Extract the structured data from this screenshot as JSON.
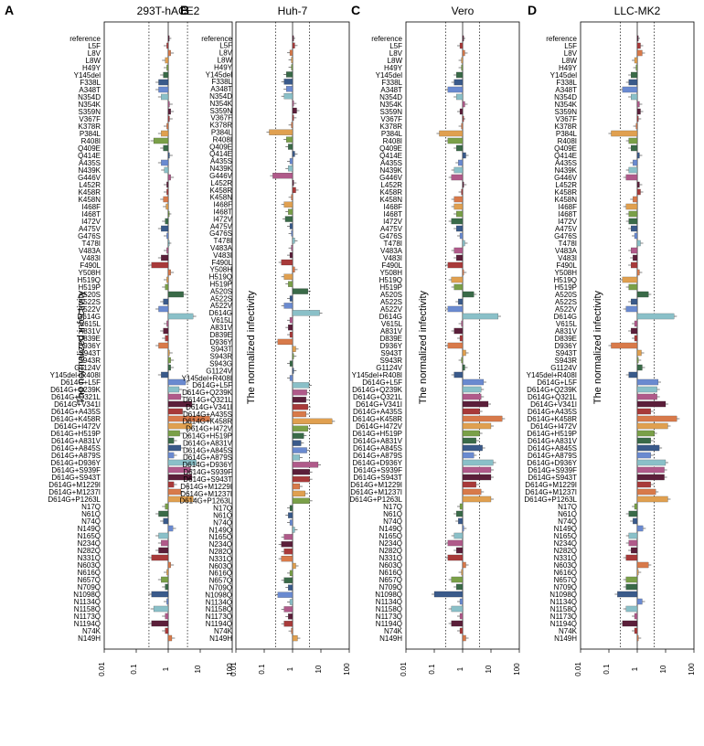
{
  "figure": {
    "y_label": "The normalized infectivity"
  },
  "chart_data": [
    {
      "panel": "A",
      "title": "293T-hACE2",
      "type": "bar",
      "orientation": "horizontal",
      "xscale": "log",
      "xlim": [
        0.01,
        100
      ],
      "xticks": [
        "0.01",
        "0.1",
        "1",
        "10",
        "100"
      ],
      "reference_lines": [
        0.25,
        4
      ],
      "ylabel": "The normalized infectivity",
      "categories": [
        "reference",
        "L5F",
        "L8V",
        "L8W",
        "H49Y",
        "Y145del",
        "F338L",
        "A348T",
        "N354D",
        "N354K",
        "S359N",
        "V367F",
        "K378R",
        "P384L",
        "R408I",
        "Q409E",
        "Q414E",
        "A435S",
        "N439K",
        "G446V",
        "L452R",
        "K458R",
        "K458N",
        "I468F",
        "I468T",
        "I472V",
        "A475V",
        "G476S",
        "T478I",
        "V483A",
        "V483I",
        "F490L",
        "Y508H",
        "H519Q",
        "H519P",
        "A520S",
        "A522S",
        "A522V",
        "D614G",
        "V615L",
        "A831V",
        "D839E",
        "D936Y",
        "S943T",
        "S943R",
        "G1124V",
        "Y145del+R408I",
        "D614G+L5F",
        "D614G+Q239K",
        "D614G+Q321L",
        "D614G+V341I",
        "D614G+A435S",
        "D614G+K458R",
        "D614G+I472V",
        "D614G+H519P",
        "D614G+A831V",
        "D614G+A845S",
        "D614G+A879S",
        "D614G+D936Y",
        "D614G+S939F",
        "D614G+S943T",
        "D614G+M1229I",
        "D614G+M1237I",
        "D614G+P1263L",
        "N17Q",
        "N61Q",
        "N74Q",
        "N149Q",
        "N165Q",
        "N234Q",
        "N282Q",
        "N331Q",
        "N603Q",
        "N616Q",
        "N657Q",
        "N709Q",
        "N1098Q",
        "N1134Q",
        "N1158Q",
        "N1173Q",
        "N1194Q",
        "N74K",
        "N149H"
      ],
      "values": [
        1,
        0.9,
        1.2,
        0.8,
        0.9,
        0.7,
        0.5,
        0.5,
        0.6,
        1.1,
        1.2,
        1.1,
        0.9,
        0.6,
        0.35,
        0.7,
        1.1,
        0.6,
        0.75,
        1.2,
        0.9,
        0.9,
        0.7,
        0.85,
        1.0,
        0.8,
        0.6,
        0.9,
        1.0,
        0.9,
        0.6,
        0.3,
        1.2,
        0.9,
        0.8,
        3.0,
        0.7,
        0.5,
        6.0,
        0.9,
        0.7,
        0.8,
        0.5,
        1.1,
        1.2,
        1.2,
        0.6,
        3.5,
        2.2,
        2.5,
        5.5,
        2.8,
        20,
        5.5,
        2.3,
        1.5,
        2.5,
        1.5,
        7.5,
        5.0,
        5.5,
        1.5,
        2.5,
        6.0,
        0.8,
        0.5,
        0.7,
        1.4,
        0.5,
        0.6,
        0.5,
        0.3,
        1.2,
        0.9,
        0.6,
        0.8,
        0.3,
        0.9,
        0.35,
        0.8,
        0.3,
        0.8,
        1.3
      ]
    },
    {
      "panel": "B",
      "title": "Huh-7",
      "type": "bar",
      "orientation": "horizontal",
      "xscale": "log",
      "xlim": [
        0.01,
        100
      ],
      "xticks": [
        "0.01",
        "0.1",
        "1",
        "10",
        "100"
      ],
      "reference_lines": [
        0.25,
        4
      ],
      "ylabel": "The normalized infectivity",
      "categories": [
        "reference",
        "L5F",
        "L8V",
        "L8W",
        "H49Y",
        "Y145del",
        "F338L",
        "A348T",
        "N354D",
        "N354K",
        "S359N",
        "V367F",
        "K378R",
        "P384L",
        "R408I",
        "Q409E",
        "Q414E",
        "A435S",
        "N439K",
        "G446V",
        "L452R",
        "K458R",
        "K458N",
        "I468F",
        "I468T",
        "I472V",
        "A475V",
        "G476S",
        "T478I",
        "V483A",
        "V483I",
        "F490L",
        "Y508H",
        "H519Q",
        "H519P",
        "A520S",
        "A522S",
        "A522V",
        "D614G",
        "V615L",
        "A831V",
        "D839E",
        "D936Y",
        "S943T",
        "S943R",
        "S943G",
        "G1124V",
        "Y145del+R408I",
        "D614G+L5F",
        "D614G+Q239K",
        "D614G+Q321L",
        "D614G+V341I",
        "D614G+A435S",
        "D614G+K458R",
        "D614G+I472V",
        "D614G+H519P",
        "D614G+A831V",
        "D614G+A845S",
        "D614G+A879S",
        "D614G+D936Y",
        "D614G+S939F",
        "D614G+S943T",
        "D614G+M1229I",
        "D614G+M1237I",
        "D614G+P1263L",
        "N17Q",
        "N61Q",
        "N74Q",
        "N149Q",
        "N165Q",
        "N234Q",
        "N282Q",
        "N331Q",
        "N603Q",
        "N616Q",
        "N657Q",
        "N709Q",
        "N1098Q",
        "N1134Q",
        "N1158Q",
        "N1173Q",
        "N1194Q",
        "N74K",
        "N149H"
      ],
      "values": [
        1,
        1.2,
        0.8,
        0.9,
        0.9,
        0.6,
        0.5,
        0.6,
        0.5,
        1.1,
        1.4,
        1.1,
        0.9,
        0.15,
        0.6,
        0.7,
        1.2,
        0.8,
        0.7,
        0.2,
        1.1,
        1.3,
        0.9,
        0.5,
        0.7,
        0.55,
        0.8,
        0.9,
        1.2,
        0.9,
        0.8,
        0.4,
        1.2,
        0.5,
        0.7,
        3.5,
        0.8,
        0.5,
        9.0,
        0.8,
        0.7,
        0.8,
        0.3,
        1.3,
        1.1,
        0.8,
        1.1,
        0.8,
        3.8,
        3.2,
        3.0,
        3.5,
        3.0,
        25,
        3.5,
        2.5,
        2.0,
        3.2,
        1.8,
        8.0,
        4.0,
        4.0,
        1.8,
        2.8,
        4.0,
        0.8,
        0.7,
        0.8,
        1.2,
        0.5,
        0.4,
        0.5,
        0.4,
        1.3,
        0.8,
        0.5,
        0.7,
        0.3,
        0.8,
        0.5,
        0.7,
        0.5,
        0.9,
        1.5
      ]
    },
    {
      "panel": "C",
      "title": "Vero",
      "type": "bar",
      "orientation": "horizontal",
      "xscale": "log",
      "xlim": [
        0.01,
        100
      ],
      "xticks": [
        "0.01",
        "0.1",
        "1",
        "10",
        "100"
      ],
      "reference_lines": [
        0.25,
        4
      ],
      "ylabel": "The normalized infectivity",
      "categories": [
        "reference",
        "L5F",
        "L8V",
        "L8W",
        "H49Y",
        "Y145del",
        "F338L",
        "A348T",
        "N354D",
        "N354K",
        "S359N",
        "V367F",
        "K378R",
        "P384L",
        "R408I",
        "Q409E",
        "Q414E",
        "A435S",
        "N439K",
        "G446V",
        "L452R",
        "K458R",
        "K458N",
        "I468F",
        "I468T",
        "I472V",
        "A475V",
        "G476S",
        "T478I",
        "V483A",
        "V483I",
        "F490L",
        "Y508H",
        "H519Q",
        "H519P",
        "A520S",
        "A522S",
        "A522V",
        "D614G",
        "V615L",
        "A831V",
        "D839E",
        "D936Y",
        "S943T",
        "S943R",
        "G1124V",
        "Y145del+R408I",
        "D614G+L5F",
        "D614G+Q239K",
        "D614G+Q321L",
        "D614G+V341I",
        "D614G+A435S",
        "D614G+K458R",
        "D614G+I472V",
        "D614G+H519P",
        "D614G+A831V",
        "D614G+A845S",
        "D614G+A879S",
        "D614G+D936Y",
        "D614G+S939F",
        "D614G+S943T",
        "D614G+M1229I",
        "D614G+M1237I",
        "D614G+P1263L",
        "N17Q",
        "N61Q",
        "N74Q",
        "N149Q",
        "N165Q",
        "N234Q",
        "N282Q",
        "N331Q",
        "N603Q",
        "N616Q",
        "N657Q",
        "N709Q",
        "N1098Q",
        "N1134Q",
        "N1158Q",
        "N1173Q",
        "N1194Q",
        "N74K",
        "N149H"
      ],
      "values": [
        1,
        0.8,
        1.2,
        0.9,
        0.9,
        0.6,
        0.5,
        0.3,
        0.6,
        1.2,
        0.8,
        1.0,
        0.9,
        0.15,
        0.3,
        0.6,
        1.3,
        0.7,
        0.5,
        0.4,
        1.1,
        0.9,
        0.5,
        0.5,
        0.6,
        0.4,
        0.6,
        0.8,
        1.2,
        0.5,
        0.6,
        0.3,
        1.1,
        0.4,
        0.5,
        2.5,
        0.7,
        0.3,
        18,
        0.9,
        0.5,
        0.8,
        0.3,
        1.3,
        0.9,
        1.2,
        0.5,
        5.5,
        4.5,
        4.5,
        8.0,
        4.0,
        25,
        10,
        4.0,
        3.0,
        5.0,
        2.5,
        12,
        10,
        10,
        3.0,
        4.5,
        10,
        0.8,
        0.6,
        0.7,
        1.1,
        0.5,
        0.3,
        0.6,
        0.3,
        1.3,
        0.9,
        0.4,
        0.6,
        0.1,
        0.8,
        0.4,
        0.8,
        0.4,
        0.8,
        1.3
      ]
    },
    {
      "panel": "D",
      "title": "LLC-MK2",
      "type": "bar",
      "orientation": "horizontal",
      "xscale": "log",
      "xlim": [
        0.01,
        100
      ],
      "xticks": [
        "0.01",
        "0.1",
        "1",
        "10",
        "100"
      ],
      "reference_lines": [
        0.25,
        4
      ],
      "ylabel": "The normalized infectivity",
      "categories": [
        "reference",
        "L5F",
        "L8V",
        "L8W",
        "H49Y",
        "Y145del",
        "F338L",
        "A348T",
        "N354D",
        "N354K",
        "S359N",
        "V367F",
        "K378R",
        "P384L",
        "R408I",
        "Q409E",
        "Q414E",
        "A435S",
        "N439K",
        "G446V",
        "L452R",
        "K458R",
        "K458N",
        "I468F",
        "I468T",
        "I472V",
        "A475V",
        "G476S",
        "T478I",
        "V483A",
        "V483I",
        "F490L",
        "Y508H",
        "H519Q",
        "H519P",
        "A520S",
        "A522S",
        "A522V",
        "D614G",
        "V615L",
        "A831V",
        "D839E",
        "D936Y",
        "S943T",
        "S943R",
        "G1124V",
        "Y145del+R408I",
        "D614G+L5F",
        "D614G+Q239K",
        "D614G+Q321L",
        "D614G+V341I",
        "D614G+A435S",
        "D614G+K458R",
        "D614G+I472V",
        "D614G+H519P",
        "D614G+A831V",
        "D614G+A845S",
        "D614G+A879S",
        "D614G+D936Y",
        "D614G+S939F",
        "D614G+S943T",
        "D614G+M1229I",
        "D614G+M1237I",
        "D614G+P1263L",
        "N17Q",
        "N61Q",
        "N74Q",
        "N149Q",
        "N165Q",
        "N234Q",
        "N282Q",
        "N331Q",
        "N603Q",
        "N616Q",
        "N657Q",
        "N709Q",
        "N1098Q",
        "N1134Q",
        "N1158Q",
        "N1173Q",
        "N1194Q",
        "N74K",
        "N149H"
      ],
      "values": [
        1,
        1.3,
        1.5,
        0.8,
        0.9,
        0.6,
        0.5,
        0.3,
        0.6,
        1.2,
        1.3,
        1.1,
        0.9,
        0.12,
        0.5,
        0.6,
        1.2,
        0.7,
        0.5,
        0.4,
        1.2,
        1.3,
        0.7,
        0.4,
        0.5,
        0.5,
        0.6,
        0.8,
        1.3,
        0.6,
        0.7,
        0.6,
        1.2,
        0.3,
        0.5,
        2.5,
        0.6,
        0.4,
        20,
        0.8,
        0.6,
        0.8,
        0.12,
        1.4,
        1.1,
        1.5,
        0.5,
        5.5,
        5.0,
        5.0,
        10,
        3.0,
        25,
        12,
        4.0,
        3.0,
        6.0,
        3.0,
        10,
        9.0,
        9.0,
        3.0,
        4.5,
        12,
        0.8,
        0.5,
        0.7,
        1.6,
        0.5,
        0.5,
        0.6,
        0.4,
        2.5,
        1.1,
        0.4,
        0.4,
        0.2,
        1.5,
        0.4,
        0.8,
        0.3,
        0.8,
        1.1
      ]
    }
  ]
}
